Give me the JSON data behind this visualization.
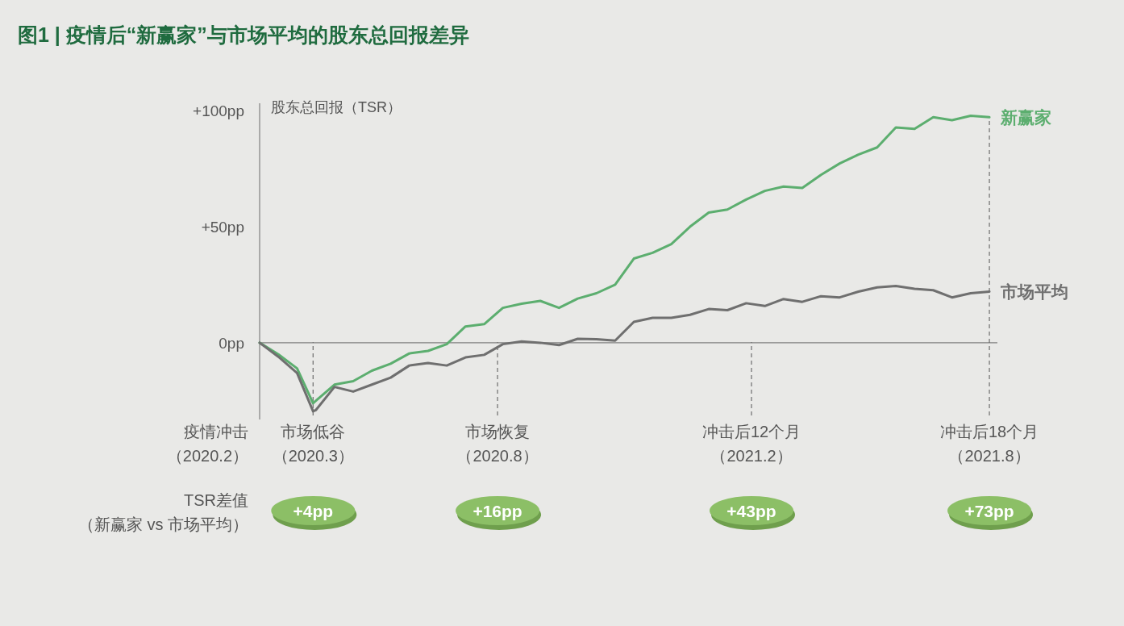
{
  "chart_data": {
    "type": "line",
    "title": "图1 | 疫情后“新赢家”与市场平均的股东总回报差异",
    "ylabel": "股东总回报（TSR）",
    "xlim": [
      "2020-02-20",
      "2021-08-25"
    ],
    "ylim": [
      -33,
      103
    ],
    "yticks": [
      {
        "value": 0,
        "label": "0pp"
      },
      {
        "value": 50,
        "label": "+50pp"
      },
      {
        "value": 100,
        "label": "+100pp"
      }
    ],
    "xticks": [
      {
        "value": "2020-03-31",
        "label": "市场低谷（2020.3）"
      },
      {
        "value": "2020-08-16",
        "label": "市场恢复（2020.8）"
      },
      {
        "value": "2021-02-22",
        "label": "冲击后12个月（2021.2）"
      },
      {
        "value": "2021-08-19",
        "label": "冲击后18个月（2021.8）"
      }
    ],
    "x": [
      "2020-02-20",
      "2020-03-05",
      "2020-03-19",
      "2020-03-31",
      "2020-04-02",
      "2020-04-16",
      "2020-04-30",
      "2020-05-14",
      "2020-05-28",
      "2020-06-11",
      "2020-06-25",
      "2020-07-09",
      "2020-07-23",
      "2020-08-06",
      "2020-08-20",
      "2020-09-03",
      "2020-09-17",
      "2020-10-01",
      "2020-10-15",
      "2020-10-29",
      "2020-11-12",
      "2020-11-26",
      "2020-12-10",
      "2020-12-24",
      "2021-01-07",
      "2021-01-21",
      "2021-02-04",
      "2021-02-18",
      "2021-03-04",
      "2021-03-18",
      "2021-04-01",
      "2021-04-15",
      "2021-04-29",
      "2021-05-13",
      "2021-05-27",
      "2021-06-10",
      "2021-06-24",
      "2021-07-08",
      "2021-07-22",
      "2021-08-05",
      "2021-08-19"
    ],
    "series": [
      {
        "name": "新赢家",
        "color": "#5cae6f",
        "values": [
          0,
          -5,
          -11,
          -26,
          -25,
          -18,
          -16.5,
          -12,
          -9,
          -4.6,
          -3.5,
          -0.6,
          7,
          8,
          15,
          16.8,
          18,
          15,
          19,
          21.3,
          25,
          36.2,
          38.7,
          42.4,
          49.9,
          56,
          57.3,
          61.6,
          65.3,
          67.2,
          66.6,
          72.2,
          77.1,
          80.9,
          84,
          92.6,
          92,
          97,
          95.7,
          97.6,
          97
        ]
      },
      {
        "name": "市场平均",
        "color": "#6f6f6f",
        "values": [
          0,
          -6,
          -13,
          -29.5,
          -29,
          -19,
          -21,
          -18,
          -15,
          -9.8,
          -8.7,
          -9.8,
          -6.3,
          -5.2,
          -0.6,
          0.6,
          0,
          -1,
          1.7,
          1.5,
          0.9,
          9,
          10.7,
          10.7,
          12,
          14.5,
          14,
          17,
          15.8,
          18.8,
          17.6,
          20,
          19.5,
          22,
          23.8,
          24.4,
          23.2,
          22.6,
          19.5,
          21.3,
          22
        ]
      }
    ],
    "ref_lines": [
      {
        "axis": "x",
        "value": "2020-03-31",
        "color": "#777777",
        "line_style": "dashed"
      },
      {
        "axis": "x",
        "value": "2020-08-16",
        "color": "#777777",
        "line_style": "dashed"
      },
      {
        "axis": "x",
        "value": "2021-02-22",
        "color": "#777777",
        "line_style": "dashed"
      },
      {
        "axis": "x",
        "value": "2021-08-19",
        "color": "#777777",
        "line_style": "dashed"
      }
    ],
    "annotations": [
      "疫情冲击（2020.2）",
      "TSR差值（新赢家 vs 市场平均）",
      "+4pp",
      "+16pp",
      "+43pp",
      "+73pp"
    ]
  }
}
